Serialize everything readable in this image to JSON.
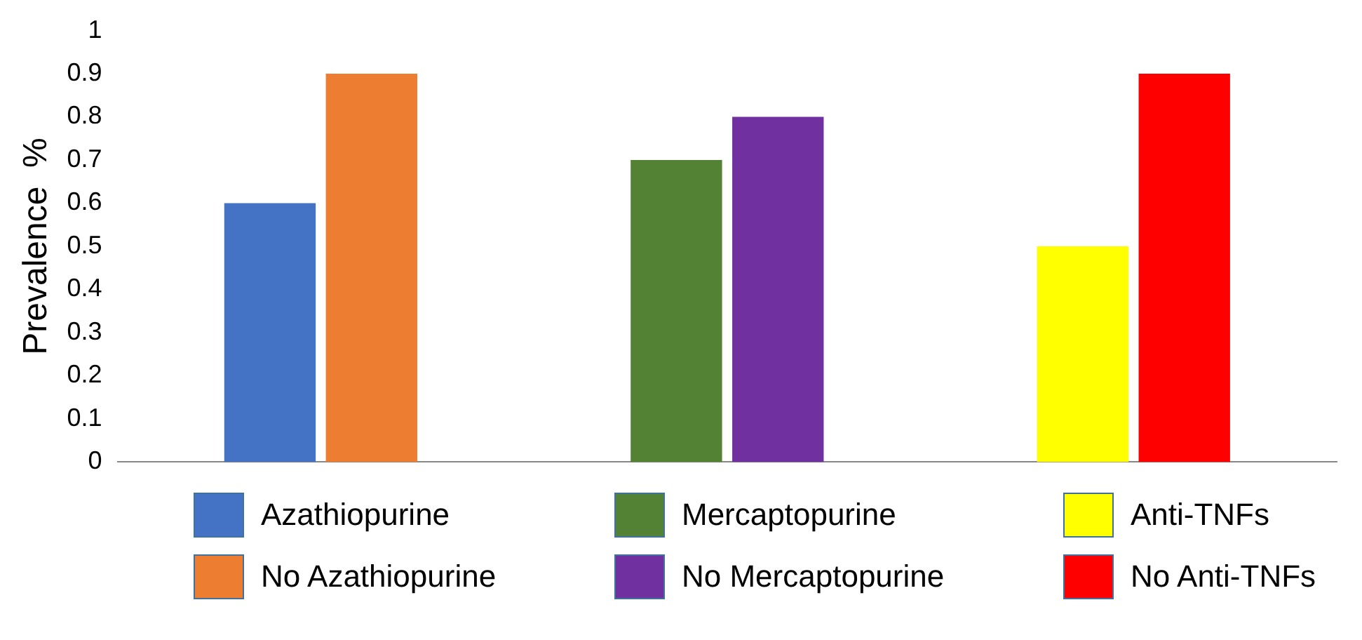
{
  "chart_data": {
    "type": "bar",
    "ylabel": "Prevalence  %",
    "categories": [
      null,
      null,
      null
    ],
    "series": [
      {
        "name": "Azathiopurine",
        "color": "#4472c4",
        "values": [
          0.6,
          null,
          null
        ]
      },
      {
        "name": "No Azathiopurine",
        "color": "#ed7d31",
        "values": [
          0.9,
          null,
          null
        ]
      },
      {
        "name": "Mercaptopurine",
        "color": "#548235",
        "values": [
          null,
          0.7,
          null
        ]
      },
      {
        "name": "No Mercaptopurine",
        "color": "#7030a0",
        "values": [
          null,
          0.8,
          null
        ]
      },
      {
        "name": "Anti-TNFs",
        "color": "#ffff00",
        "values": [
          null,
          null,
          0.5
        ]
      },
      {
        "name": "No Anti-TNFs",
        "color": "#ff0000",
        "values": [
          null,
          null,
          0.9
        ]
      }
    ],
    "ylim": [
      0,
      1
    ],
    "yticks": [
      0,
      0.1,
      0.2,
      0.3,
      0.4,
      0.5,
      0.6,
      0.7,
      0.8,
      0.9,
      1
    ],
    "grid": false,
    "legend": "bottom",
    "tick_labels": "y"
  }
}
